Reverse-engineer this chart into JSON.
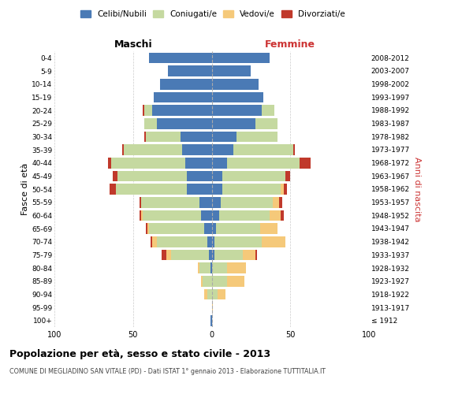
{
  "age_groups": [
    "100+",
    "95-99",
    "90-94",
    "85-89",
    "80-84",
    "75-79",
    "70-74",
    "65-69",
    "60-64",
    "55-59",
    "50-54",
    "45-49",
    "40-44",
    "35-39",
    "30-34",
    "25-29",
    "20-24",
    "15-19",
    "10-14",
    "5-9",
    "0-4"
  ],
  "birth_years": [
    "≤ 1912",
    "1913-1917",
    "1918-1922",
    "1923-1927",
    "1928-1932",
    "1933-1937",
    "1938-1942",
    "1943-1947",
    "1948-1952",
    "1953-1957",
    "1958-1962",
    "1963-1967",
    "1968-1972",
    "1973-1977",
    "1978-1982",
    "1983-1987",
    "1988-1992",
    "1993-1997",
    "1998-2002",
    "2003-2007",
    "2008-2012"
  ],
  "male": {
    "celibi": [
      1,
      0,
      0,
      0,
      1,
      2,
      3,
      5,
      7,
      8,
      16,
      16,
      17,
      19,
      20,
      35,
      38,
      37,
      33,
      28,
      40
    ],
    "coniugati": [
      0,
      0,
      3,
      6,
      7,
      24,
      32,
      35,
      37,
      37,
      45,
      44,
      47,
      37,
      22,
      8,
      5,
      0,
      0,
      0,
      0
    ],
    "vedovi": [
      0,
      0,
      2,
      1,
      1,
      3,
      3,
      1,
      1,
      0,
      0,
      0,
      0,
      0,
      0,
      0,
      0,
      0,
      0,
      0,
      0
    ],
    "divorziati": [
      0,
      0,
      0,
      0,
      0,
      3,
      1,
      1,
      1,
      1,
      4,
      3,
      2,
      1,
      1,
      0,
      1,
      0,
      0,
      0,
      0
    ]
  },
  "female": {
    "nubili": [
      0,
      0,
      0,
      0,
      0,
      2,
      2,
      3,
      5,
      6,
      7,
      7,
      10,
      14,
      16,
      28,
      32,
      33,
      30,
      25,
      37
    ],
    "coniugate": [
      0,
      0,
      4,
      10,
      10,
      18,
      30,
      28,
      32,
      33,
      37,
      40,
      46,
      38,
      26,
      14,
      8,
      0,
      0,
      0,
      0
    ],
    "vedove": [
      0,
      1,
      5,
      11,
      12,
      8,
      15,
      11,
      7,
      4,
      2,
      0,
      0,
      0,
      0,
      0,
      0,
      0,
      0,
      0,
      0
    ],
    "divorziate": [
      0,
      0,
      0,
      0,
      0,
      1,
      0,
      0,
      2,
      2,
      2,
      3,
      7,
      1,
      0,
      0,
      0,
      0,
      0,
      0,
      0
    ]
  },
  "colors": {
    "celibi_nubili": "#4a7ab5",
    "coniugati_e": "#c5d9a0",
    "vedovi_e": "#f5c97a",
    "divorziati_e": "#c0392b"
  },
  "title": "Popolazione per età, sesso e stato civile - 2013",
  "subtitle": "COMUNE DI MEGLIADINO SAN VITALE (PD) - Dati ISTAT 1° gennaio 2013 - Elaborazione TUTTITALIA.IT",
  "xlabel_left": "Maschi",
  "xlabel_right": "Femmine",
  "ylabel_left": "Fasce di età",
  "ylabel_right": "Anni di nascita",
  "legend_labels": [
    "Celibi/Nubili",
    "Coniugati/e",
    "Vedovi/e",
    "Divorziati/e"
  ],
  "xlim": 100,
  "background_color": "#ffffff",
  "grid_color": "#cccccc"
}
